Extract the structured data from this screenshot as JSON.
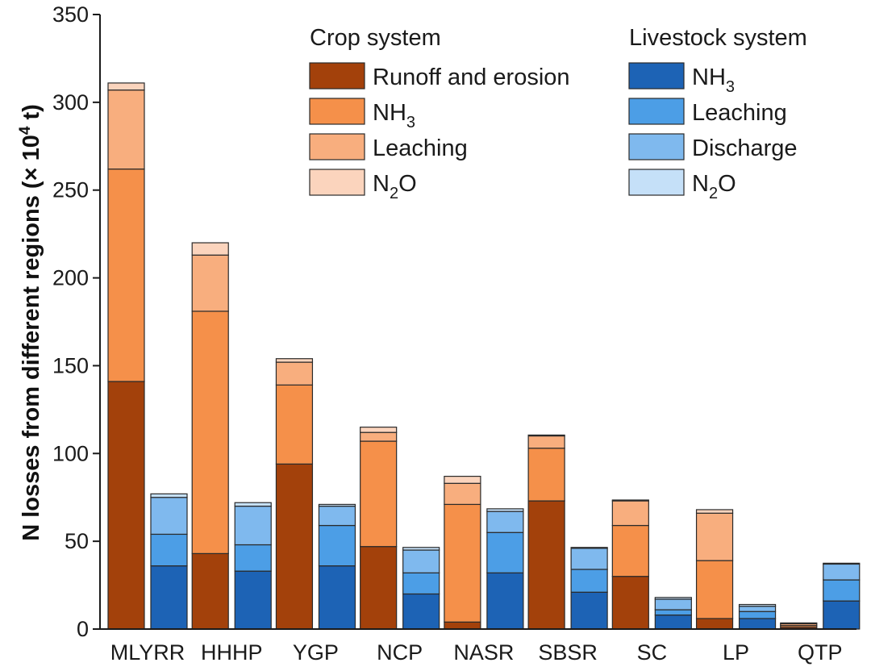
{
  "chart_data": {
    "type": "bar",
    "subtype": "grouped-stacked",
    "title": "",
    "xlabel": "",
    "ylabel": "N losses from different regions (× 10⁴ t)",
    "ylabel_parts": {
      "main": "N losses from different regions (× 10",
      "exp": "4",
      "unit": " t)"
    },
    "ylim": [
      0,
      350
    ],
    "yticks": [
      0,
      50,
      100,
      150,
      200,
      250,
      300,
      350
    ],
    "grid": false,
    "categories": [
      "MLYRR",
      "HHHP",
      "YGP",
      "NCP",
      "NASR",
      "SBSR",
      "SC",
      "LP",
      "QTP"
    ],
    "groups": [
      {
        "name": "Crop system",
        "series": [
          {
            "name": "Runoff and erosion",
            "label_main": "Runoff and erosion",
            "label_sub": "",
            "color": "#a3410b",
            "values": [
              141,
              43,
              94,
              47,
              4,
              73,
              30,
              6,
              1
            ]
          },
          {
            "name": "NH3",
            "label_main": "NH",
            "label_sub": "3",
            "color": "#f5904a",
            "values": [
              121,
              138,
              45,
              60,
              67,
              30,
              29,
              33,
              1
            ]
          },
          {
            "name": "Leaching",
            "label_main": "Leaching",
            "label_sub": "",
            "color": "#f8ae7e",
            "values": [
              45,
              32,
              13,
              5,
              12,
              7,
              14,
              27,
              1
            ]
          },
          {
            "name": "N2O",
            "label_main": "N",
            "label_sub": "2",
            "label_tail": "O",
            "color": "#fbd4bd",
            "values": [
              4,
              7,
              2,
              3,
              4,
              0.5,
              0.5,
              2,
              0.5
            ]
          }
        ]
      },
      {
        "name": "Livestock system",
        "series": [
          {
            "name": "NH3",
            "label_main": "NH",
            "label_sub": "3",
            "color": "#1d63b5",
            "values": [
              36,
              33,
              36,
              20,
              32,
              21,
              8,
              6,
              16
            ]
          },
          {
            "name": "Leaching",
            "label_main": "Leaching",
            "label_sub": "",
            "color": "#4c9ee6",
            "values": [
              18,
              15,
              23,
              12,
              23,
              13,
              3,
              4,
              12
            ]
          },
          {
            "name": "Discharge",
            "label_main": "Discharge",
            "label_sub": "",
            "color": "#7fb9ee",
            "values": [
              21,
              22,
              11,
              13,
              12,
              12,
              6,
              3,
              9
            ]
          },
          {
            "name": "N2O",
            "label_main": "N",
            "label_sub": "2",
            "label_tail": "O",
            "color": "#c5e0f8",
            "values": [
              2,
              2,
              1,
              1.5,
              1.5,
              0.5,
              1,
              1,
              0.5
            ]
          }
        ]
      }
    ],
    "legend_position": "top-right"
  }
}
